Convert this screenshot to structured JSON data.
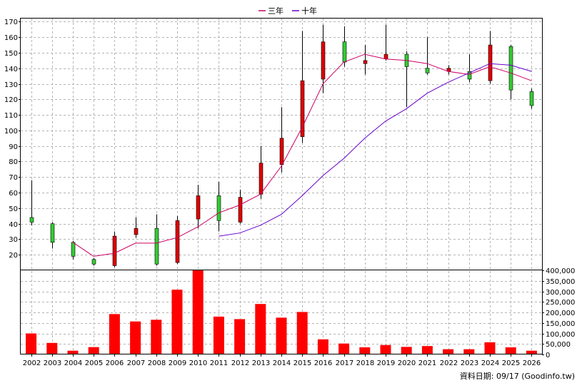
{
  "chart_data": {
    "type": "candlestick",
    "legend": [
      {
        "name": "三年",
        "color": "#cc0066"
      },
      {
        "name": "十年",
        "color": "#6600cc"
      }
    ],
    "colors": {
      "up": "#e00000",
      "down": "#33cc33",
      "wick": "#000000",
      "volume": "#ff0000"
    },
    "years": [
      "2002",
      "2003",
      "2004",
      "2005",
      "2006",
      "2007",
      "2008",
      "2009",
      "2010",
      "2011",
      "2012",
      "2013",
      "2014",
      "2015",
      "2016",
      "2017",
      "2018",
      "2019",
      "2020",
      "2021",
      "2022",
      "2023",
      "2024",
      "2025",
      "2026"
    ],
    "price_axis": {
      "min": 10,
      "max": 172,
      "ticks": [
        20,
        30,
        40,
        50,
        60,
        70,
        80,
        90,
        100,
        110,
        120,
        130,
        140,
        150,
        160,
        170
      ]
    },
    "volume_axis": {
      "min": 0,
      "max": 400000,
      "ticks": [
        0,
        50000,
        100000,
        150000,
        200000,
        250000,
        300000,
        350000,
        400000
      ],
      "tick_labels": [
        "0",
        "50,000",
        "100,000",
        "150,000",
        "200,000",
        "250,000",
        "300,000",
        "350,000",
        "400,000"
      ]
    },
    "candles": [
      {
        "open": 44,
        "close": 41,
        "high": 68,
        "low": 39
      },
      {
        "open": 40,
        "close": 28,
        "high": 41,
        "low": 24
      },
      {
        "open": 28,
        "close": 19,
        "high": 29,
        "low": 17
      },
      {
        "open": 17,
        "close": 14,
        "high": 18,
        "low": 13
      },
      {
        "open": 13,
        "close": 32,
        "high": 35,
        "low": 12
      },
      {
        "open": 33,
        "close": 37,
        "high": 44,
        "low": 31
      },
      {
        "open": 37,
        "close": 14,
        "high": 46,
        "low": 13
      },
      {
        "open": 15,
        "close": 42,
        "high": 45,
        "low": 14
      },
      {
        "open": 43,
        "close": 58,
        "high": 65,
        "low": 37
      },
      {
        "open": 58,
        "close": 42,
        "high": 67,
        "low": 35
      },
      {
        "open": 41,
        "close": 57,
        "high": 62,
        "low": 40
      },
      {
        "open": 59,
        "close": 79,
        "high": 90,
        "low": 56
      },
      {
        "open": 78,
        "close": 95,
        "high": 115,
        "low": 73
      },
      {
        "open": 96,
        "close": 132,
        "high": 164,
        "low": 92
      },
      {
        "open": 133,
        "close": 157,
        "high": 168,
        "low": 124
      },
      {
        "open": 157,
        "close": 144,
        "high": 167,
        "low": 141
      },
      {
        "open": 143,
        "close": 145,
        "high": 155,
        "low": 136
      },
      {
        "open": 146,
        "close": 149,
        "high": 168,
        "low": 145
      },
      {
        "open": 149,
        "close": 141,
        "high": 151,
        "low": 115
      },
      {
        "open": 140,
        "close": 137,
        "high": 160,
        "low": 136
      },
      {
        "open": 138,
        "close": 140,
        "high": 142,
        "low": 136
      },
      {
        "open": 138,
        "close": 133,
        "high": 149,
        "low": 131
      },
      {
        "open": 132,
        "close": 155,
        "high": 164,
        "low": 130
      },
      {
        "open": 154,
        "close": 126,
        "high": 155,
        "low": 120
      },
      {
        "open": 125,
        "close": 116,
        "high": 127,
        "low": 114
      }
    ],
    "ma_three_year": [
      null,
      null,
      28,
      19,
      21,
      27.5,
      27.5,
      31,
      38,
      47,
      52,
      59,
      77,
      102,
      130,
      144,
      149,
      146,
      145,
      143,
      138,
      136,
      141,
      137,
      132
    ],
    "ma_ten_year": [
      null,
      null,
      null,
      null,
      null,
      null,
      null,
      null,
      null,
      32,
      34,
      39,
      46,
      58,
      71,
      82,
      95,
      106,
      114,
      124,
      131,
      137,
      143,
      142,
      138
    ],
    "volume": [
      100000,
      55000,
      18000,
      35000,
      192000,
      157000,
      165000,
      308000,
      405000,
      180000,
      168000,
      240000,
      175000,
      202000,
      72000,
      52000,
      34000,
      45000,
      36000,
      40000,
      25000,
      25000,
      58000,
      34000,
      18000
    ],
    "source_note": "資料日期: 09/17 (Goodinfo.tw)"
  }
}
